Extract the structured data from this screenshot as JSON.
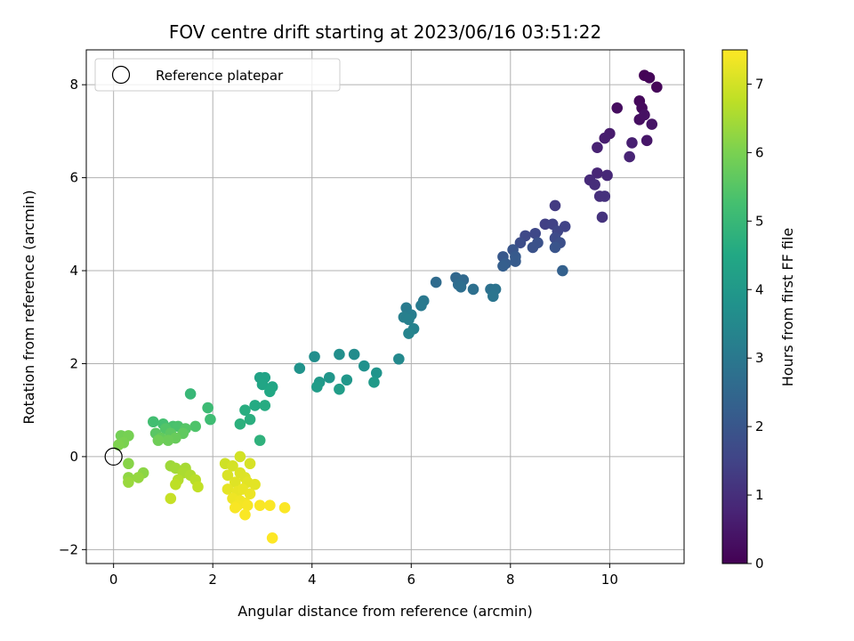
{
  "chart_data": {
    "type": "scatter",
    "title": "FOV centre drift starting at 2023/06/16 03:51:22",
    "xlabel": "Angular distance from reference (arcmin)",
    "ylabel": "Rotation from reference (arcmin)",
    "xlim": [
      -0.55,
      11.5
    ],
    "ylim": [
      -2.3,
      8.75
    ],
    "xticks": [
      0,
      2,
      4,
      6,
      8,
      10
    ],
    "yticks": [
      -2,
      0,
      2,
      4,
      6,
      8
    ],
    "grid": true,
    "legend": {
      "placement": "top-left",
      "entries": [
        "Reference platepar"
      ]
    },
    "reference_point": {
      "x": 0,
      "y": 0
    },
    "colorbar": {
      "label": "Hours from first FF file",
      "colormap": "viridis",
      "range": [
        0,
        7.5
      ],
      "ticks": [
        0,
        1,
        2,
        3,
        4,
        5,
        6,
        7
      ]
    },
    "points": [
      {
        "x": 10.7,
        "y": 8.2,
        "c": 0.05
      },
      {
        "x": 10.8,
        "y": 8.15,
        "c": 0.08
      },
      {
        "x": 10.95,
        "y": 7.95,
        "c": 0.12
      },
      {
        "x": 10.6,
        "y": 7.65,
        "c": 0.15
      },
      {
        "x": 10.65,
        "y": 7.5,
        "c": 0.2
      },
      {
        "x": 10.15,
        "y": 7.5,
        "c": 0.25
      },
      {
        "x": 10.6,
        "y": 7.25,
        "c": 0.3
      },
      {
        "x": 10.7,
        "y": 7.35,
        "c": 0.35
      },
      {
        "x": 10.85,
        "y": 7.15,
        "c": 0.4
      },
      {
        "x": 10.75,
        "y": 6.8,
        "c": 0.45
      },
      {
        "x": 10.0,
        "y": 6.95,
        "c": 0.55
      },
      {
        "x": 9.9,
        "y": 6.85,
        "c": 0.6
      },
      {
        "x": 10.45,
        "y": 6.75,
        "c": 0.65
      },
      {
        "x": 9.75,
        "y": 6.65,
        "c": 0.7
      },
      {
        "x": 10.4,
        "y": 6.45,
        "c": 0.75
      },
      {
        "x": 9.75,
        "y": 6.1,
        "c": 0.8
      },
      {
        "x": 9.95,
        "y": 6.05,
        "c": 0.85
      },
      {
        "x": 9.6,
        "y": 5.95,
        "c": 0.9
      },
      {
        "x": 9.7,
        "y": 5.85,
        "c": 0.95
      },
      {
        "x": 9.8,
        "y": 5.6,
        "c": 1.0
      },
      {
        "x": 9.9,
        "y": 5.6,
        "c": 1.05
      },
      {
        "x": 9.85,
        "y": 5.15,
        "c": 1.1
      },
      {
        "x": 8.9,
        "y": 5.4,
        "c": 1.3
      },
      {
        "x": 8.7,
        "y": 5.0,
        "c": 1.4
      },
      {
        "x": 8.85,
        "y": 5.0,
        "c": 1.45
      },
      {
        "x": 9.1,
        "y": 4.95,
        "c": 1.5
      },
      {
        "x": 8.95,
        "y": 4.85,
        "c": 1.55
      },
      {
        "x": 8.5,
        "y": 4.8,
        "c": 1.6
      },
      {
        "x": 8.3,
        "y": 4.75,
        "c": 1.65
      },
      {
        "x": 8.9,
        "y": 4.7,
        "c": 1.7
      },
      {
        "x": 8.2,
        "y": 4.6,
        "c": 1.75
      },
      {
        "x": 9.0,
        "y": 4.6,
        "c": 1.8
      },
      {
        "x": 8.55,
        "y": 4.6,
        "c": 1.85
      },
      {
        "x": 8.45,
        "y": 4.5,
        "c": 1.9
      },
      {
        "x": 8.9,
        "y": 4.5,
        "c": 1.95
      },
      {
        "x": 8.05,
        "y": 4.45,
        "c": 2.0
      },
      {
        "x": 7.85,
        "y": 4.3,
        "c": 2.05
      },
      {
        "x": 8.1,
        "y": 4.3,
        "c": 2.1
      },
      {
        "x": 8.1,
        "y": 4.2,
        "c": 2.15
      },
      {
        "x": 7.9,
        "y": 4.15,
        "c": 2.2
      },
      {
        "x": 7.85,
        "y": 4.1,
        "c": 2.25
      },
      {
        "x": 9.05,
        "y": 4.0,
        "c": 2.3
      },
      {
        "x": 6.9,
        "y": 3.85,
        "c": 2.5
      },
      {
        "x": 7.05,
        "y": 3.8,
        "c": 2.55
      },
      {
        "x": 6.5,
        "y": 3.75,
        "c": 2.6
      },
      {
        "x": 6.95,
        "y": 3.7,
        "c": 2.65
      },
      {
        "x": 7.0,
        "y": 3.65,
        "c": 2.7
      },
      {
        "x": 7.25,
        "y": 3.6,
        "c": 2.75
      },
      {
        "x": 7.6,
        "y": 3.6,
        "c": 2.8
      },
      {
        "x": 7.7,
        "y": 3.6,
        "c": 2.85
      },
      {
        "x": 7.65,
        "y": 3.45,
        "c": 2.9
      },
      {
        "x": 6.25,
        "y": 3.35,
        "c": 3.0
      },
      {
        "x": 6.2,
        "y": 3.25,
        "c": 3.05
      },
      {
        "x": 5.9,
        "y": 3.2,
        "c": 3.1
      },
      {
        "x": 6.0,
        "y": 3.05,
        "c": 3.15
      },
      {
        "x": 5.85,
        "y": 3.0,
        "c": 3.2
      },
      {
        "x": 5.95,
        "y": 2.95,
        "c": 3.25
      },
      {
        "x": 6.05,
        "y": 2.75,
        "c": 3.3
      },
      {
        "x": 5.95,
        "y": 2.65,
        "c": 3.35
      },
      {
        "x": 5.75,
        "y": 2.1,
        "c": 3.5
      },
      {
        "x": 4.85,
        "y": 2.2,
        "c": 3.6
      },
      {
        "x": 4.05,
        "y": 2.15,
        "c": 3.65
      },
      {
        "x": 4.55,
        "y": 2.2,
        "c": 3.7
      },
      {
        "x": 5.05,
        "y": 1.95,
        "c": 3.75
      },
      {
        "x": 3.75,
        "y": 1.9,
        "c": 3.8
      },
      {
        "x": 5.3,
        "y": 1.8,
        "c": 3.85
      },
      {
        "x": 4.35,
        "y": 1.7,
        "c": 3.9
      },
      {
        "x": 4.7,
        "y": 1.65,
        "c": 3.95
      },
      {
        "x": 4.15,
        "y": 1.6,
        "c": 4.0
      },
      {
        "x": 5.25,
        "y": 1.6,
        "c": 4.05
      },
      {
        "x": 4.1,
        "y": 1.5,
        "c": 4.1
      },
      {
        "x": 4.55,
        "y": 1.45,
        "c": 4.15
      },
      {
        "x": 2.95,
        "y": 1.7,
        "c": 4.3
      },
      {
        "x": 3.05,
        "y": 1.7,
        "c": 4.35
      },
      {
        "x": 3.0,
        "y": 1.55,
        "c": 4.4
      },
      {
        "x": 3.2,
        "y": 1.5,
        "c": 4.45
      },
      {
        "x": 3.15,
        "y": 1.4,
        "c": 4.5
      },
      {
        "x": 2.85,
        "y": 1.1,
        "c": 4.55
      },
      {
        "x": 3.05,
        "y": 1.1,
        "c": 4.6
      },
      {
        "x": 2.65,
        "y": 1.0,
        "c": 4.65
      },
      {
        "x": 2.75,
        "y": 0.8,
        "c": 4.7
      },
      {
        "x": 2.55,
        "y": 0.7,
        "c": 4.75
      },
      {
        "x": 2.95,
        "y": 0.35,
        "c": 4.8
      },
      {
        "x": 1.55,
        "y": 1.35,
        "c": 5.0
      },
      {
        "x": 1.9,
        "y": 1.05,
        "c": 5.1
      },
      {
        "x": 1.95,
        "y": 0.8,
        "c": 5.15
      },
      {
        "x": 0.8,
        "y": 0.75,
        "c": 5.2
      },
      {
        "x": 1.0,
        "y": 0.7,
        "c": 5.25
      },
      {
        "x": 1.2,
        "y": 0.65,
        "c": 5.3
      },
      {
        "x": 1.3,
        "y": 0.65,
        "c": 5.35
      },
      {
        "x": 1.65,
        "y": 0.65,
        "c": 5.4
      },
      {
        "x": 1.05,
        "y": 0.6,
        "c": 5.45
      },
      {
        "x": 1.45,
        "y": 0.6,
        "c": 5.5
      },
      {
        "x": 0.85,
        "y": 0.5,
        "c": 5.55
      },
      {
        "x": 1.15,
        "y": 0.5,
        "c": 5.6
      },
      {
        "x": 1.4,
        "y": 0.5,
        "c": 5.65
      },
      {
        "x": 0.95,
        "y": 0.4,
        "c": 5.7
      },
      {
        "x": 1.25,
        "y": 0.4,
        "c": 5.75
      },
      {
        "x": 1.1,
        "y": 0.35,
        "c": 5.8
      },
      {
        "x": 0.9,
        "y": 0.35,
        "c": 5.85
      },
      {
        "x": 0.15,
        "y": 0.45,
        "c": 5.9
      },
      {
        "x": 0.3,
        "y": 0.45,
        "c": 5.95
      },
      {
        "x": 0.2,
        "y": 0.3,
        "c": 6.0
      },
      {
        "x": 0.1,
        "y": 0.25,
        "c": 6.05
      },
      {
        "x": 0.3,
        "y": -0.15,
        "c": 6.15
      },
      {
        "x": 0.6,
        "y": -0.35,
        "c": 6.2
      },
      {
        "x": 0.3,
        "y": -0.45,
        "c": 6.25
      },
      {
        "x": 0.5,
        "y": -0.45,
        "c": 6.3
      },
      {
        "x": 0.3,
        "y": -0.55,
        "c": 6.35
      },
      {
        "x": 1.15,
        "y": -0.2,
        "c": 6.4
      },
      {
        "x": 1.25,
        "y": -0.25,
        "c": 6.45
      },
      {
        "x": 1.45,
        "y": -0.25,
        "c": 6.5
      },
      {
        "x": 1.4,
        "y": -0.35,
        "c": 6.55
      },
      {
        "x": 1.55,
        "y": -0.4,
        "c": 6.6
      },
      {
        "x": 1.3,
        "y": -0.5,
        "c": 6.65
      },
      {
        "x": 1.65,
        "y": -0.5,
        "c": 6.7
      },
      {
        "x": 1.25,
        "y": -0.6,
        "c": 6.75
      },
      {
        "x": 1.7,
        "y": -0.65,
        "c": 6.8
      },
      {
        "x": 1.15,
        "y": -0.9,
        "c": 6.85
      },
      {
        "x": 2.25,
        "y": -0.15,
        "c": 6.95
      },
      {
        "x": 2.55,
        "y": 0.0,
        "c": 7.0
      },
      {
        "x": 2.4,
        "y": -0.2,
        "c": 7.02
      },
      {
        "x": 2.75,
        "y": -0.15,
        "c": 7.05
      },
      {
        "x": 2.3,
        "y": -0.4,
        "c": 7.08
      },
      {
        "x": 2.55,
        "y": -0.35,
        "c": 7.1
      },
      {
        "x": 2.65,
        "y": -0.45,
        "c": 7.12
      },
      {
        "x": 2.45,
        "y": -0.55,
        "c": 7.15
      },
      {
        "x": 2.7,
        "y": -0.55,
        "c": 7.18
      },
      {
        "x": 2.85,
        "y": -0.6,
        "c": 7.2
      },
      {
        "x": 2.3,
        "y": -0.7,
        "c": 7.22
      },
      {
        "x": 2.5,
        "y": -0.75,
        "c": 7.25
      },
      {
        "x": 2.6,
        "y": -0.7,
        "c": 7.27
      },
      {
        "x": 2.75,
        "y": -0.8,
        "c": 7.3
      },
      {
        "x": 2.4,
        "y": -0.9,
        "c": 7.32
      },
      {
        "x": 2.55,
        "y": -0.95,
        "c": 7.35
      },
      {
        "x": 2.65,
        "y": -1.0,
        "c": 7.37
      },
      {
        "x": 2.5,
        "y": -1.05,
        "c": 7.4
      },
      {
        "x": 2.7,
        "y": -1.05,
        "c": 7.42
      },
      {
        "x": 2.45,
        "y": -1.1,
        "c": 7.44
      },
      {
        "x": 2.95,
        "y": -1.05,
        "c": 7.45
      },
      {
        "x": 3.15,
        "y": -1.05,
        "c": 7.46
      },
      {
        "x": 2.65,
        "y": -1.25,
        "c": 7.47
      },
      {
        "x": 3.45,
        "y": -1.1,
        "c": 7.48
      },
      {
        "x": 3.2,
        "y": -1.75,
        "c": 7.5
      }
    ]
  }
}
